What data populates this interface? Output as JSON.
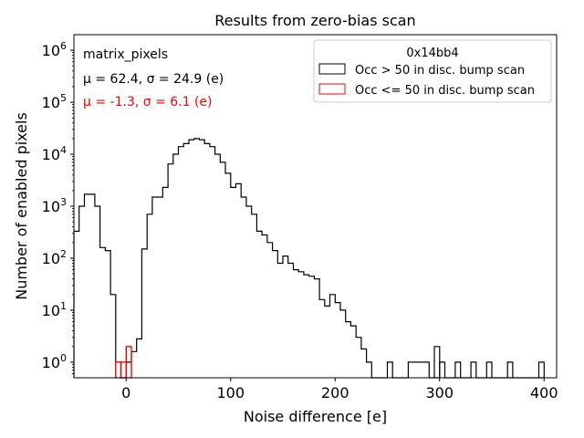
{
  "chart_data": {
    "type": "histogram",
    "title": "Results from zero-bias scan",
    "xlabel": "Noise difference [e]",
    "ylabel": "Number of enabled pixels",
    "xlim": [
      -50,
      412
    ],
    "ylim_log10": [
      -0.3,
      6.3
    ],
    "x_ticks": [
      {
        "value": 0,
        "label": "0"
      },
      {
        "value": 100,
        "label": "100"
      },
      {
        "value": 200,
        "label": "200"
      },
      {
        "value": 300,
        "label": "300"
      },
      {
        "value": 400,
        "label": "400"
      }
    ],
    "y_ticks": [
      {
        "exp": 0,
        "base": "10",
        "sup": "0"
      },
      {
        "exp": 1,
        "base": "10",
        "sup": "1"
      },
      {
        "exp": 2,
        "base": "10",
        "sup": "2"
      },
      {
        "exp": 3,
        "base": "10",
        "sup": "3"
      },
      {
        "exp": 4,
        "base": "10",
        "sup": "4"
      },
      {
        "exp": 5,
        "base": "10",
        "sup": "5"
      },
      {
        "exp": 6,
        "base": "10",
        "sup": "6"
      }
    ],
    "bin_width": 5,
    "series": [
      {
        "name": "Occ > 50 in disc. bump scan",
        "color": "#000000",
        "bins": [
          [
            -50,
            330
          ],
          [
            -45,
            1000
          ],
          [
            -40,
            1700
          ],
          [
            -35,
            1700
          ],
          [
            -30,
            1000
          ],
          [
            -25,
            160
          ],
          [
            -20,
            140
          ],
          [
            -15,
            20
          ],
          [
            -10,
            1
          ],
          [
            -5,
            0
          ],
          [
            0,
            1
          ],
          [
            5,
            1.6
          ],
          [
            10,
            2.8
          ],
          [
            15,
            150
          ],
          [
            20,
            700
          ],
          [
            25,
            1500
          ],
          [
            30,
            1500
          ],
          [
            35,
            2300
          ],
          [
            40,
            6500
          ],
          [
            45,
            10000
          ],
          [
            50,
            14000
          ],
          [
            55,
            16000
          ],
          [
            60,
            19000
          ],
          [
            65,
            20000
          ],
          [
            70,
            19000
          ],
          [
            75,
            16000
          ],
          [
            80,
            14000
          ],
          [
            85,
            10000
          ],
          [
            90,
            7000
          ],
          [
            95,
            4300
          ],
          [
            100,
            2300
          ],
          [
            105,
            2700
          ],
          [
            110,
            1500
          ],
          [
            115,
            1000
          ],
          [
            120,
            700
          ],
          [
            125,
            330
          ],
          [
            130,
            280
          ],
          [
            135,
            200
          ],
          [
            140,
            140
          ],
          [
            145,
            80
          ],
          [
            150,
            110
          ],
          [
            155,
            80
          ],
          [
            160,
            60
          ],
          [
            165,
            55
          ],
          [
            170,
            48
          ],
          [
            175,
            45
          ],
          [
            180,
            40
          ],
          [
            185,
            16
          ],
          [
            190,
            12
          ],
          [
            195,
            20
          ],
          [
            200,
            14
          ],
          [
            205,
            10
          ],
          [
            210,
            6
          ],
          [
            215,
            5
          ],
          [
            220,
            3
          ],
          [
            225,
            1.8
          ],
          [
            230,
            1
          ],
          [
            235,
            0
          ],
          [
            240,
            0
          ],
          [
            245,
            0
          ],
          [
            250,
            1
          ],
          [
            255,
            0
          ],
          [
            260,
            0
          ],
          [
            265,
            0
          ],
          [
            270,
            1
          ],
          [
            275,
            1
          ],
          [
            280,
            1
          ],
          [
            285,
            1
          ],
          [
            290,
            0
          ],
          [
            295,
            0
          ],
          [
            300,
            1
          ],
          [
            305,
            0
          ],
          [
            310,
            0
          ],
          [
            315,
            0
          ],
          [
            320,
            0
          ],
          [
            325,
            0
          ],
          [
            330,
            1
          ],
          [
            335,
            0
          ],
          [
            340,
            0
          ],
          [
            345,
            0
          ],
          [
            350,
            0
          ],
          [
            355,
            0
          ],
          [
            360,
            0
          ],
          [
            365,
            0
          ],
          [
            370,
            0
          ],
          [
            375,
            0
          ],
          [
            380,
            0
          ],
          [
            385,
            0
          ],
          [
            390,
            0
          ],
          [
            395,
            0
          ]
        ],
        "isolated_bins": [
          [
            295,
            2
          ],
          [
            315,
            1
          ],
          [
            345,
            1
          ],
          [
            365,
            1
          ],
          [
            395,
            1
          ]
        ]
      },
      {
        "name": "Occ <= 50 in disc. bump scan",
        "color": "#ff0000",
        "bins": [
          [
            -10,
            1
          ],
          [
            -5,
            1
          ],
          [
            0,
            2
          ]
        ]
      }
    ],
    "legend": {
      "title": "0x14bb4",
      "location": "upper right"
    },
    "annotations": [
      {
        "id": "label",
        "text": "matrix_pixels",
        "color": "#000000"
      },
      {
        "id": "stats_black",
        "text": "μ = 62.4, σ = 24.9 (e)",
        "color": "#000000"
      },
      {
        "id": "stats_red",
        "text": "μ = -1.3, σ = 6.1 (e)",
        "color": "#ff0000"
      }
    ]
  }
}
